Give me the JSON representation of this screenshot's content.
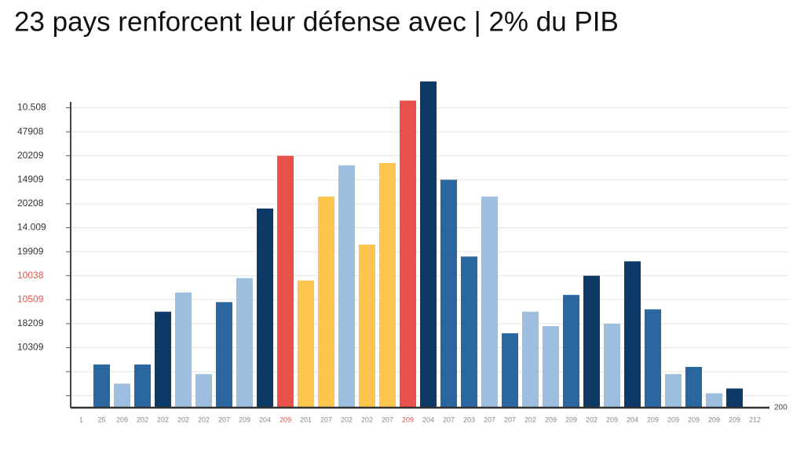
{
  "chart_data": {
    "type": "bar",
    "title": "23 pays renforcent leur défense avec | 2% du PIB",
    "categories": [
      "1",
      "25",
      "209",
      "202",
      "202",
      "202",
      "202",
      "207",
      "209",
      "204",
      "209",
      "201",
      "207",
      "202",
      "202",
      "207",
      "209",
      "204",
      "207",
      "203",
      "207",
      "207",
      "202",
      "209",
      "209",
      "202",
      "209",
      "204",
      "209",
      "209",
      "209",
      "209",
      "209",
      "212"
    ],
    "category_colors": [
      "#888888",
      "#888888",
      "#888888",
      "#888888",
      "#888888",
      "#888888",
      "#888888",
      "#888888",
      "#888888",
      "#888888",
      "#e8524a",
      "#888888",
      "#888888",
      "#888888",
      "#888888",
      "#888888",
      "#e8524a",
      "#888888",
      "#888888",
      "#888888",
      "#888888",
      "#888888",
      "#888888",
      "#888888",
      "#888888",
      "#888888",
      "#888888",
      "#888888",
      "#888888",
      "#888888",
      "#888888",
      "#888888",
      "#888888",
      "#888888"
    ],
    "values": [
      null,
      1.8,
      1.0,
      1.8,
      4.0,
      4.8,
      1.4,
      4.4,
      5.4,
      8.3,
      10.5,
      5.3,
      8.8,
      10.1,
      6.8,
      10.2,
      12.8,
      13.6,
      9.5,
      6.3,
      8.8,
      3.1,
      4.0,
      3.4,
      4.7,
      5.5,
      3.5,
      6.1,
      4.1,
      1.4,
      1.7,
      0.6,
      0.8,
      null
    ],
    "colors": [
      null,
      "#2a66a0",
      "#9dbfdf",
      "#2a66a0",
      "#0e3a68",
      "#9dbfdf",
      "#9dbfdf",
      "#2a66a0",
      "#9dbfdf",
      "#0e3a68",
      "#e8524a",
      "#fcc54e",
      "#fcc54e",
      "#9dbfdf",
      "#fcc54e",
      "#fcc54e",
      "#e8524a",
      "#0e3a68",
      "#2a66a0",
      "#2a66a0",
      "#9dbfdf",
      "#2a66a0",
      "#9dbfdf",
      "#9dbfdf",
      "#2a66a0",
      "#0e3a68",
      "#9dbfdf",
      "#0e3a68",
      "#2a66a0",
      "#9dbfdf",
      "#2a66a0",
      "#9dbfdf",
      "#0e3a68",
      null
    ],
    "ylim": [
      0,
      14
    ],
    "yticks": [
      {
        "value": 0.5,
        "label": null
      },
      {
        "value": 1.5,
        "label": null
      },
      {
        "value": 2.5,
        "label": "10309"
      },
      {
        "value": 3.5,
        "label": "18209"
      },
      {
        "value": 4.5,
        "label": "10509",
        "color": "#e8524a"
      },
      {
        "value": 5.5,
        "label": "10038",
        "color": "#e8524a"
      },
      {
        "value": 6.5,
        "label": "19909"
      },
      {
        "value": 7.5,
        "label": "14.009"
      },
      {
        "value": 8.5,
        "label": "20208"
      },
      {
        "value": 9.5,
        "label": "14909"
      },
      {
        "value": 10.5,
        "label": "20209"
      },
      {
        "value": 11.5,
        "label": "47908"
      },
      {
        "value": 12.5,
        "label": "10.508"
      }
    ],
    "axis_end_label": "200",
    "grid": true
  }
}
